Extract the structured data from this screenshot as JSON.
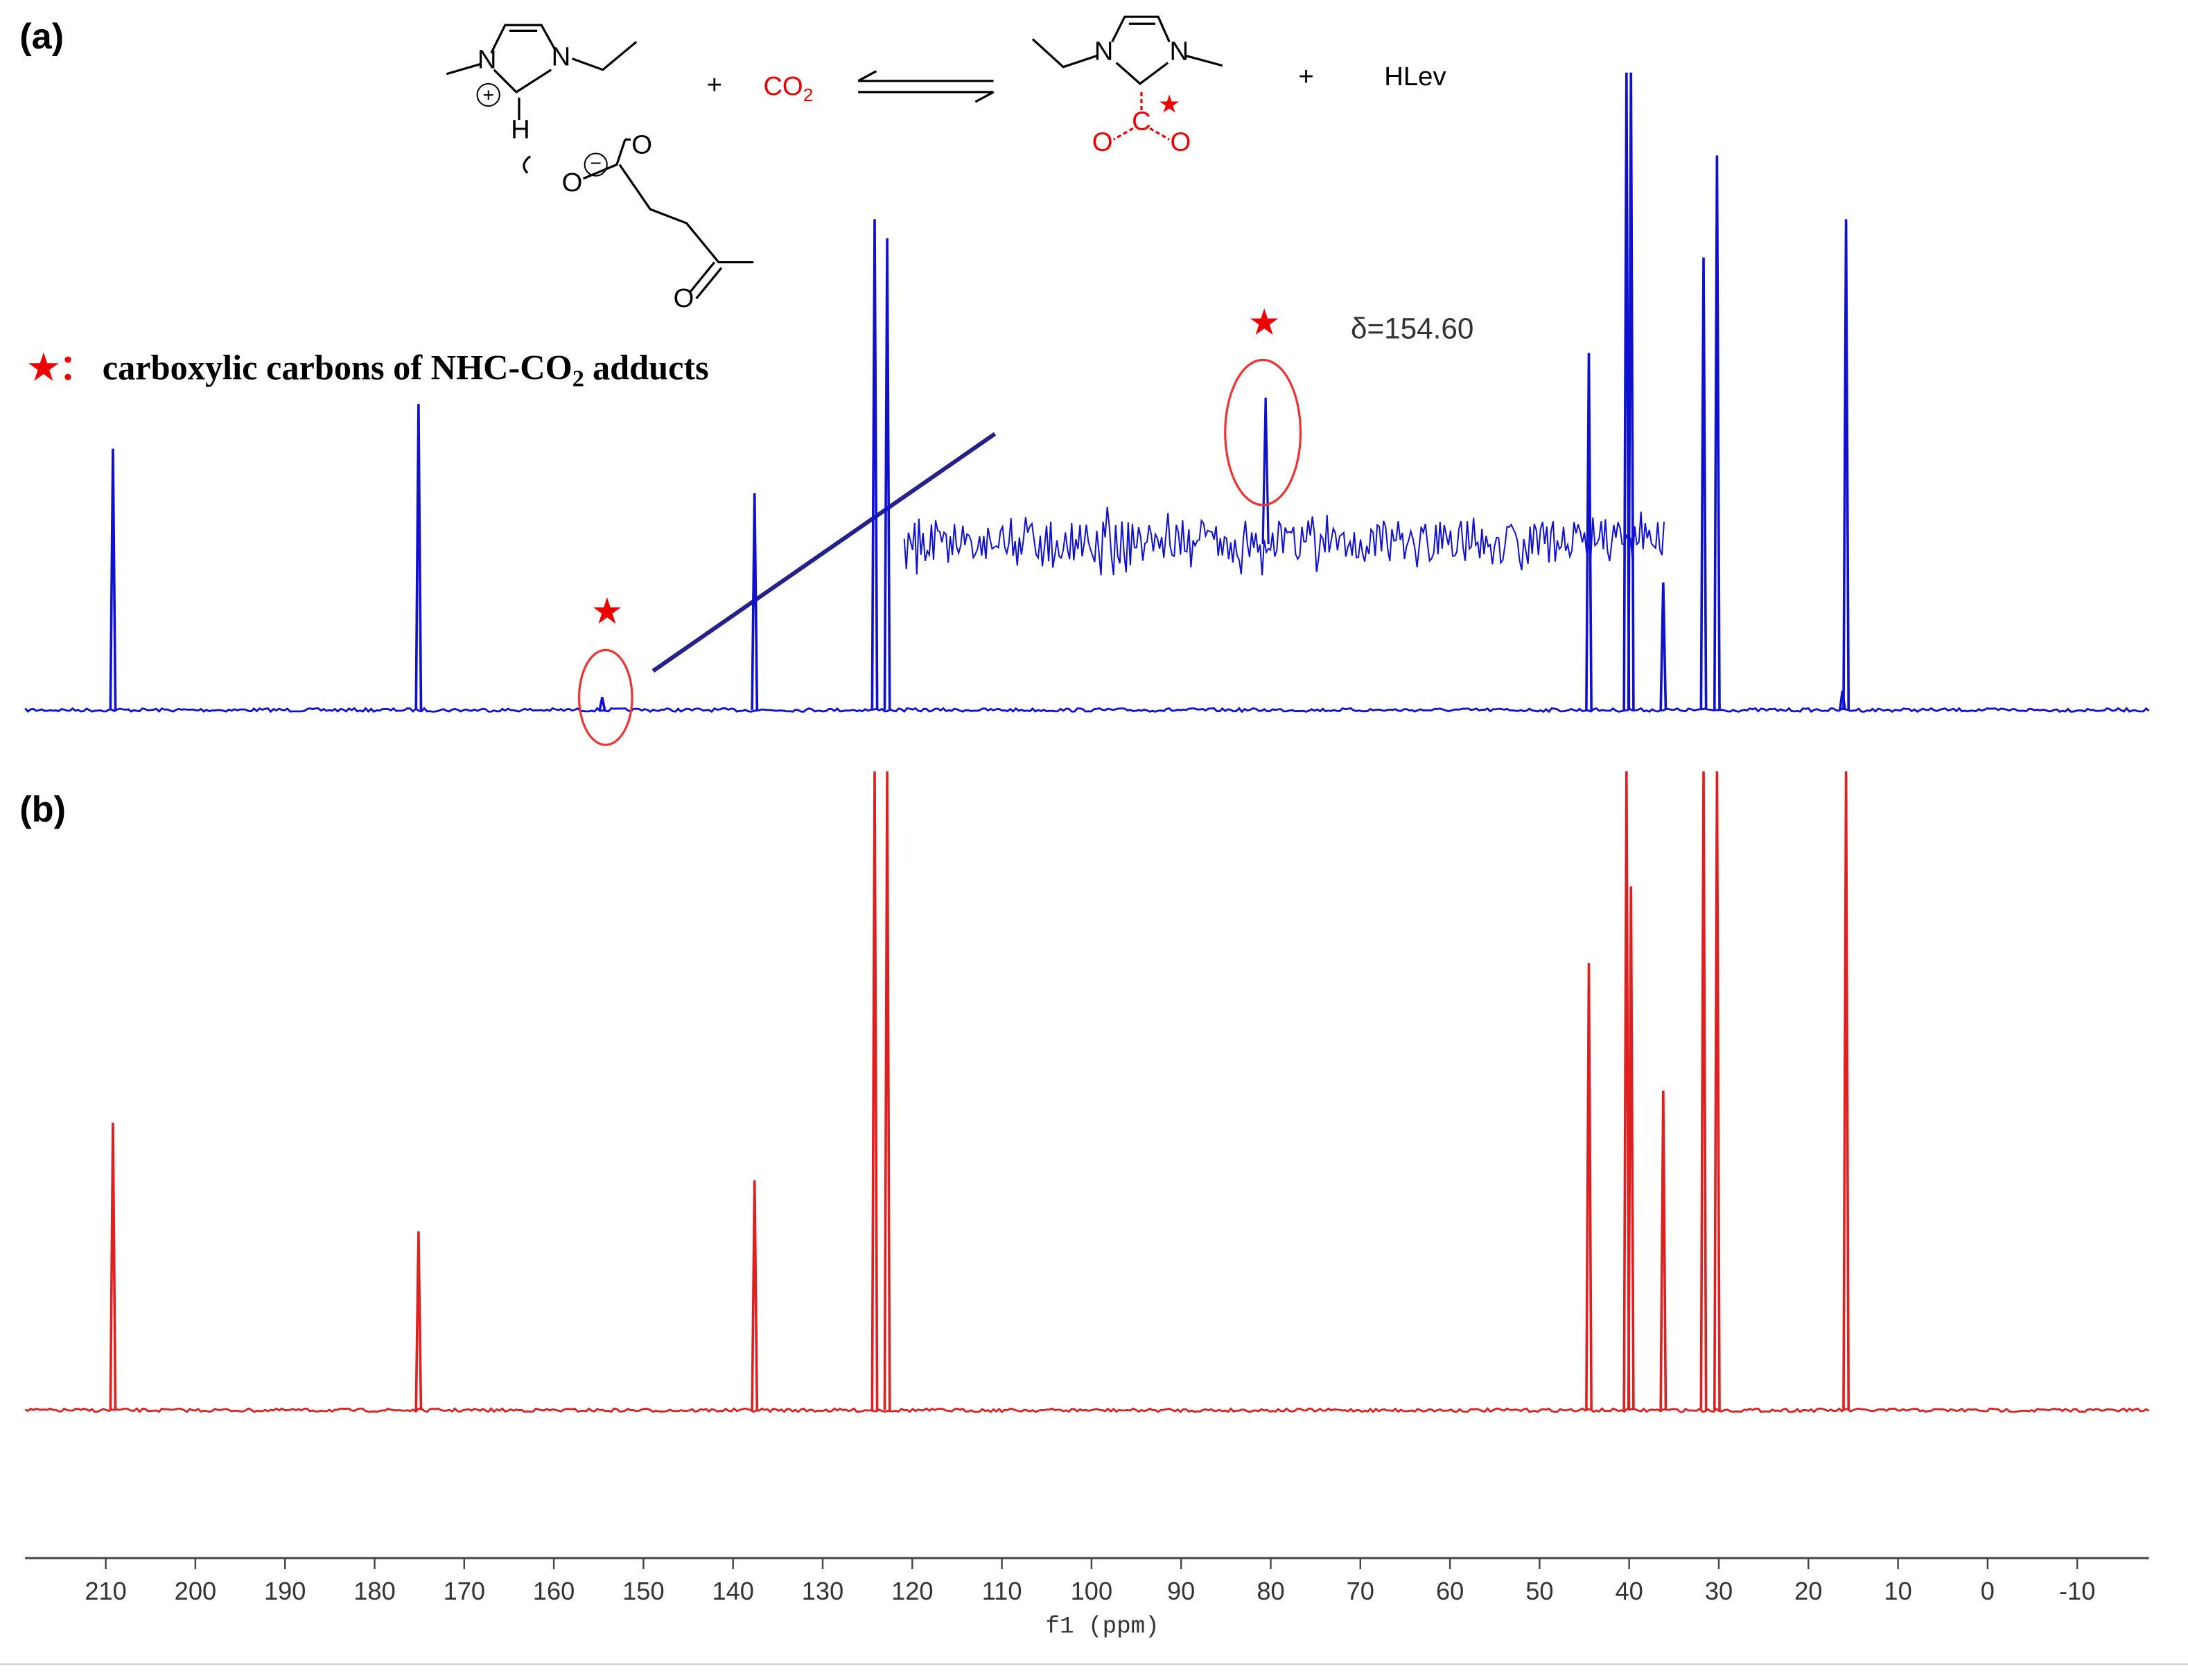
{
  "chart_data": {
    "type": "spectrum",
    "x_label": "f1 (ppm)",
    "xlim": [
      219,
      -18
    ],
    "xticks": [
      210,
      200,
      190,
      180,
      170,
      160,
      150,
      140,
      130,
      120,
      110,
      100,
      90,
      80,
      70,
      60,
      50,
      40,
      30,
      20,
      10,
      0,
      -10
    ],
    "ylim": [
      0,
      100
    ],
    "series": [
      {
        "label": "(a)",
        "color": "#1010d0",
        "x": [
          209.2,
          175.1,
          154.6,
          137.6,
          124.2,
          122.8,
          44.5,
          40.3,
          39.8,
          36.2,
          31.7,
          30.2,
          16.2,
          15.8
        ],
        "values": [
          41,
          48,
          2,
          34,
          77,
          74,
          56,
          100,
          100,
          20,
          71,
          87,
          3,
          77
        ]
      },
      {
        "label": "(b)",
        "color": "#e02020",
        "x": [
          209.2,
          175.1,
          137.6,
          124.2,
          122.8,
          44.5,
          40.3,
          39.8,
          36.2,
          31.7,
          30.2,
          15.8
        ],
        "values": [
          45,
          28,
          36,
          100,
          100,
          70,
          100,
          82,
          50,
          100,
          100,
          100
        ]
      }
    ],
    "inset_annotation": "δ=154.60",
    "star": "★",
    "note": {
      "marker": "★：",
      "text": "carboxylic carbons of NHC-CO",
      "sub": "2",
      "tail": "adducts"
    },
    "scheme": {
      "atoms": [
        "N",
        "N",
        "H",
        "O",
        "O",
        "O",
        "N",
        "N",
        "C",
        "O",
        "O"
      ],
      "charges": [
        "+",
        "−"
      ],
      "plus": "+",
      "co2": "CO",
      "co2_sub": "2",
      "hlev": "HLev"
    }
  }
}
